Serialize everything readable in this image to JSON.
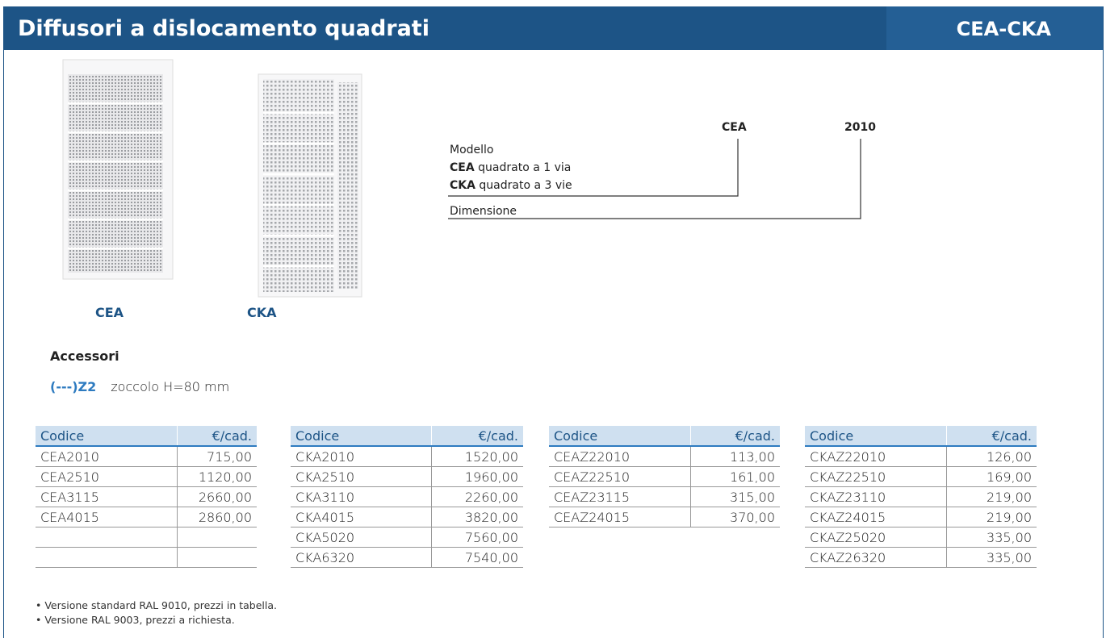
{
  "header": {
    "title": "Diffusori a dislocamento quadrati",
    "code": "CEA-CKA"
  },
  "products": [
    "CEA",
    "CKA"
  ],
  "diagram": {
    "parts": [
      "CEA",
      "2010"
    ],
    "model_label": "Modello",
    "models": [
      {
        "code": "CEA",
        "text": "quadrato a 1 via"
      },
      {
        "code": "CKA",
        "text": "quadrato a 3 vie"
      }
    ],
    "size_label": "Dimensione"
  },
  "accessories": {
    "title": "Accessori",
    "items": [
      {
        "code": "(---)Z2",
        "text": "zoccolo H=80 mm"
      }
    ]
  },
  "tables": [
    {
      "header": [
        "Codice",
        "€/cad."
      ],
      "rows": [
        [
          "CEA2010",
          "715,00"
        ],
        [
          "CEA2510",
          "1120,00"
        ],
        [
          "CEA3115",
          "2660,00"
        ],
        [
          "CEA4015",
          "2860,00"
        ]
      ]
    },
    {
      "header": [
        "Codice",
        "€/cad."
      ],
      "rows": [
        [
          "CKA2010",
          "1520,00"
        ],
        [
          "CKA2510",
          "1960,00"
        ],
        [
          "CKA3110",
          "2260,00"
        ],
        [
          "CKA4015",
          "3820,00"
        ],
        [
          "CKA5020",
          "7560,00"
        ],
        [
          "CKA6320",
          "7540,00"
        ]
      ]
    },
    {
      "header": [
        "Codice",
        "€/cad."
      ],
      "rows": [
        [
          "CEAZ22010",
          "113,00"
        ],
        [
          "CEAZ22510",
          "161,00"
        ],
        [
          "CEAZ23115",
          "315,00"
        ],
        [
          "CEAZ24015",
          "370,00"
        ]
      ]
    },
    {
      "header": [
        "Codice",
        "€/cad."
      ],
      "rows": [
        [
          "CKAZ22010",
          "126,00"
        ],
        [
          "CKAZ22510",
          "169,00"
        ],
        [
          "CKAZ23110",
          "219,00"
        ],
        [
          "CKAZ24015",
          "219,00"
        ],
        [
          "CKAZ25020",
          "335,00"
        ],
        [
          "CKAZ26320",
          "335,00"
        ]
      ]
    }
  ],
  "notes": [
    "• Versione standard RAL 9010, prezzi in tabella.",
    "• Versione RAL 9003, prezzi a richiesta."
  ]
}
